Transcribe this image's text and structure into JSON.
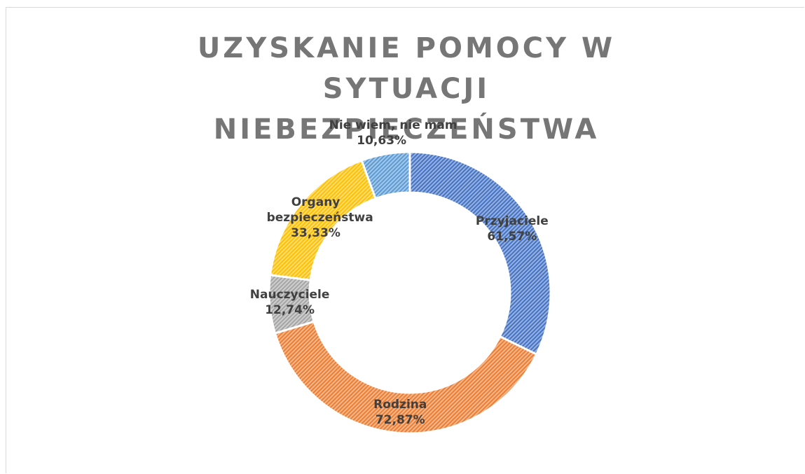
{
  "chart_data": {
    "type": "doughnut",
    "title": "UZYSKANIE POMOCY W SYTUACJI NIEBEZPIECZEŃSTWA",
    "categories": [
      "Przyjaciele",
      "Rodzina",
      "Nauczyciele",
      "Organy bezpieczeństwa",
      "Nie wiem, nie mam"
    ],
    "values": [
      61.57,
      72.87,
      12.74,
      33.33,
      10.63
    ],
    "value_labels": [
      "61,57%",
      "72,87%",
      "12,74%",
      "33,33%",
      "10,63%"
    ],
    "colors": [
      "#4472c4",
      "#ed7d31",
      "#a5a5a5",
      "#ffc000",
      "#5b9bd5"
    ]
  }
}
